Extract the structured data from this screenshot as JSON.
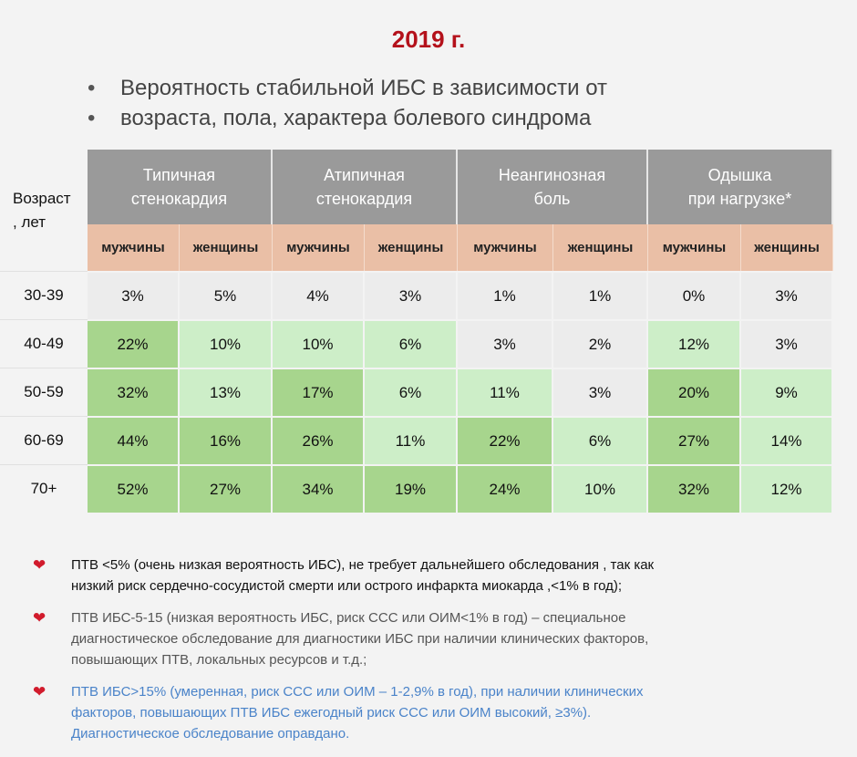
{
  "title": "2019 г.",
  "bullets": [
    "Вероятность стабильной ИБС в зависимости от",
    "возраста, пола, характера болевого синдрома"
  ],
  "table": {
    "age_header": [
      "Возраст",
      ", лет"
    ],
    "groups": [
      {
        "line1": "Типичная",
        "line2": "стенокардия"
      },
      {
        "line1": "Атипичная",
        "line2": "стенокардия"
      },
      {
        "line1": "Неангинозная",
        "line2": "боль"
      },
      {
        "line1": "Одышка",
        "line2": "при нагрузке*"
      }
    ],
    "sex_labels": [
      "мужчины",
      "женщины",
      "мужчины",
      "женщины",
      "мужчины",
      "женщины",
      "мужчины",
      "женщины"
    ],
    "rows": [
      {
        "age": "30-39",
        "values": [
          "3%",
          "5%",
          "4%",
          "3%",
          "1%",
          "1%",
          "0%",
          "3%"
        ],
        "shade": [
          0,
          0,
          0,
          0,
          0,
          0,
          0,
          0
        ]
      },
      {
        "age": "40-49",
        "values": [
          "22%",
          "10%",
          "10%",
          "6%",
          "3%",
          "2%",
          "12%",
          "3%"
        ],
        "shade": [
          2,
          1,
          1,
          1,
          0,
          0,
          1,
          0
        ]
      },
      {
        "age": "50-59",
        "values": [
          "32%",
          "13%",
          "17%",
          "6%",
          "11%",
          "3%",
          "20%",
          "9%"
        ],
        "shade": [
          2,
          1,
          2,
          1,
          1,
          0,
          2,
          1
        ]
      },
      {
        "age": "60-69",
        "values": [
          "44%",
          "16%",
          "26%",
          "11%",
          "22%",
          "6%",
          "27%",
          "14%"
        ],
        "shade": [
          2,
          2,
          2,
          1,
          2,
          1,
          2,
          1
        ]
      },
      {
        "age": "70+",
        "values": [
          "52%",
          "27%",
          "34%",
          "19%",
          "24%",
          "10%",
          "32%",
          "12%"
        ],
        "shade": [
          2,
          2,
          2,
          2,
          2,
          1,
          2,
          1
        ]
      }
    ]
  },
  "notes": [
    {
      "lines": [
        "ПТВ <5% (очень низкая вероятность ИБС), не требует дальнейшего обследования , так как",
        "низкий риск сердечно-сосудистой смерти или острого инфаркта миокарда ,<1% в год);"
      ]
    },
    {
      "lines": [
        "ПТВ ИБС-5-15 (низкая вероятность ИБС, риск ССС или ОИМ<1% в год) – специальное",
        "диагностическое обследование для диагностики ИБС при наличии клинических факторов,",
        "повышающих ПТВ, локальных ресурсов и т.д.;"
      ]
    },
    {
      "lines": [
        "ПТВ ИБС>15% (умеренная, риск ССС или ОИМ – 1-2,9% в год), при наличии клинических",
        "факторов, повышающих ПТВ ИБС ежегодный риск ССС или ОИМ высокий, ≥3%).",
        "Диагностическое обследование оправдано."
      ]
    }
  ],
  "colors": {
    "title": "#b4111b",
    "header_gray": "#9a9a9a",
    "header_peach": "#eabfa6",
    "cell_none": "#ececec",
    "cell_light_green": "#cdeec8",
    "cell_green": "#a7d58d",
    "heart": "#d11b2c",
    "note_blue": "#4a83c9"
  },
  "icons": {
    "bullet": "bullet-dot",
    "note_marker": "heart-icon"
  }
}
